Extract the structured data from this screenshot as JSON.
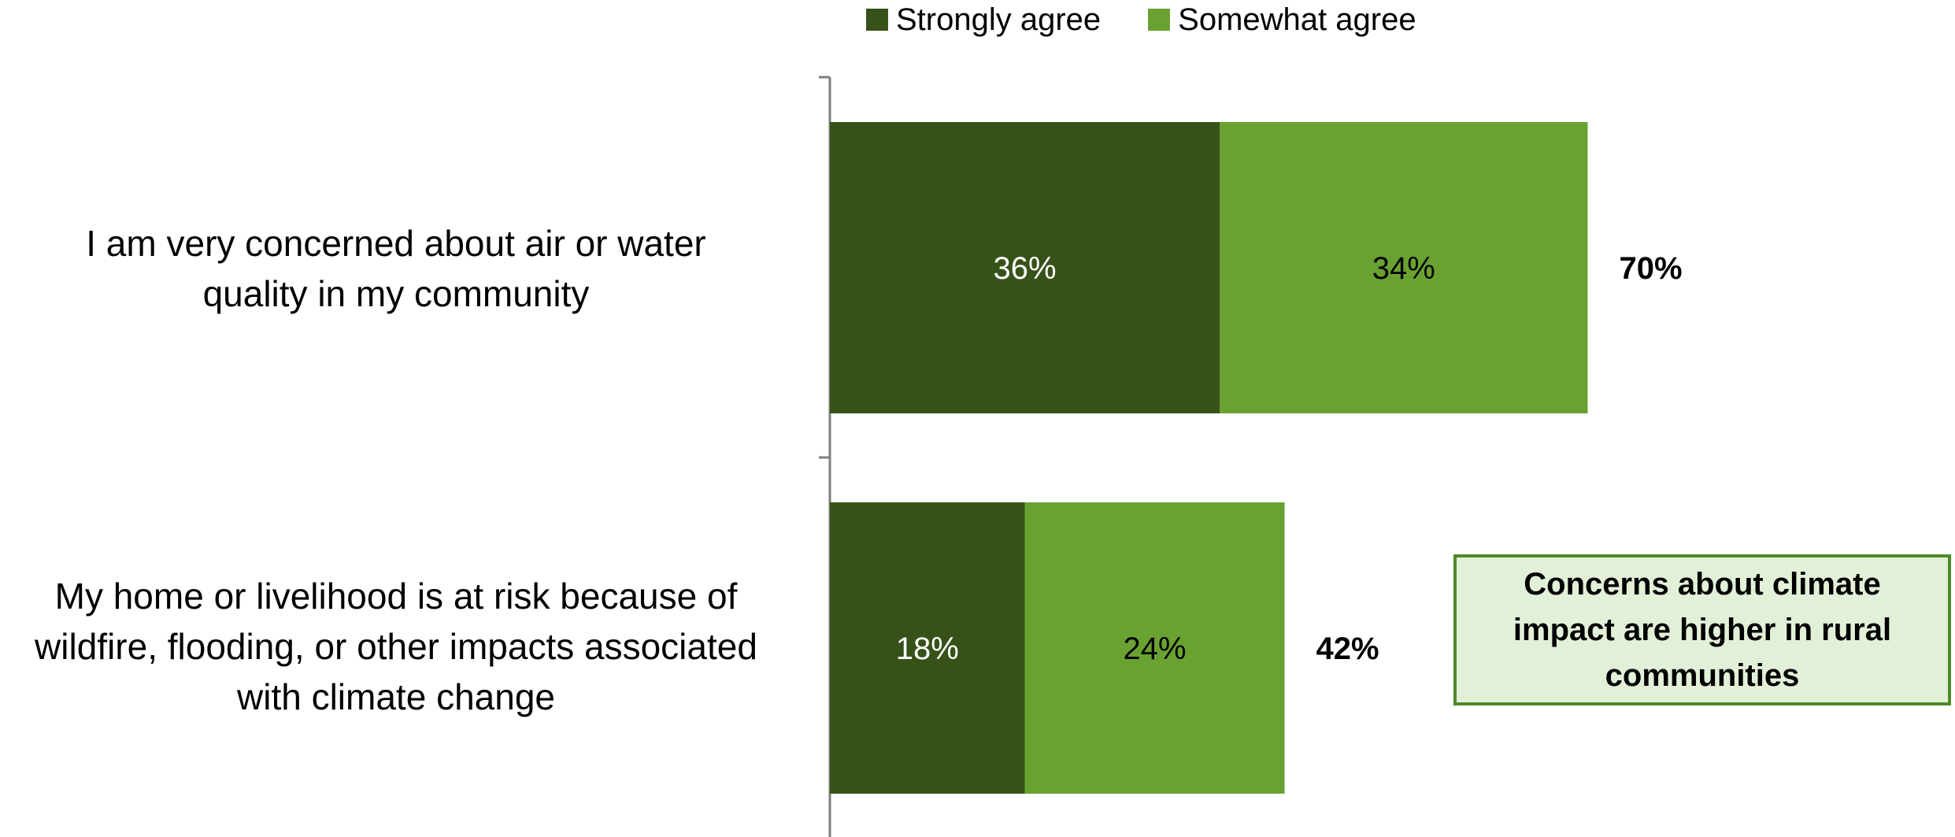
{
  "chart_data": {
    "type": "bar",
    "orientation": "horizontal",
    "stacked": true,
    "title": "",
    "xlabel": "",
    "ylabel": "",
    "categories": [
      "I am very concerned about air or water quality in my community",
      "My home or livelihood is at risk because of wildfire, flooding, or other impacts associated with climate change"
    ],
    "category_lines": [
      [
        "I am very concerned about air or water",
        "quality in my community"
      ],
      [
        "My home or livelihood is at risk because of",
        "wildfire, flooding, or other impacts associated",
        "with climate change"
      ]
    ],
    "series": [
      {
        "name": "Strongly agree",
        "values": [
          36,
          18
        ],
        "labels": [
          "36%",
          "18%"
        ],
        "color": "#375219",
        "label_color": "#ffffff"
      },
      {
        "name": "Somewhat agree",
        "values": [
          34,
          24
        ],
        "labels": [
          "34%",
          "24%"
        ],
        "color": "#6aa232",
        "label_color": "#000000"
      }
    ],
    "totals": [
      "70%",
      "42%"
    ],
    "xlim": [
      0,
      100
    ],
    "grid": false,
    "legend_position": "top-center",
    "annotation": "Concerns about climate impact are higher in rural communities"
  },
  "colors": {
    "callout_fill": "#e2f0d8",
    "callout_border": "#4f8a2a",
    "axis": "#7f7f7f"
  }
}
